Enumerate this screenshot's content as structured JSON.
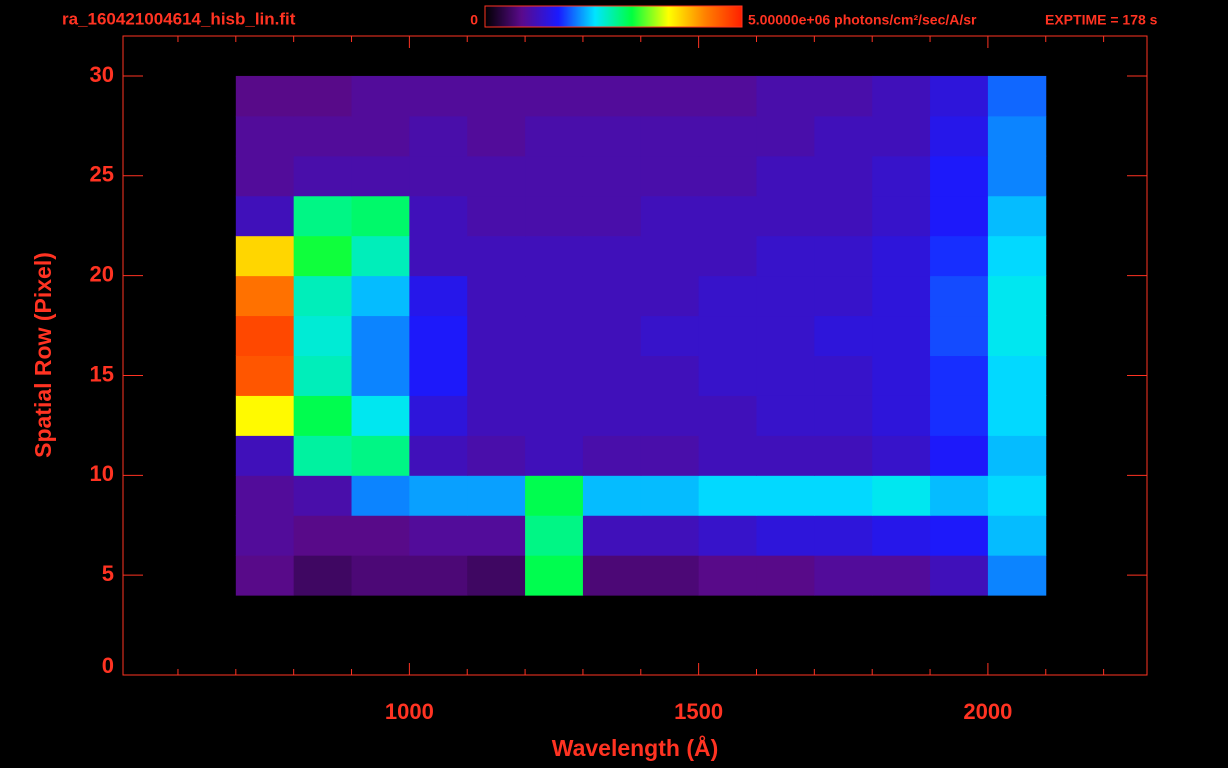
{
  "chart_data": {
    "type": "heatmap",
    "title": "ra_160421004614_hisb_lin.fit",
    "exptime": "EXPTIME = 178 s",
    "x_label": "Wavelength (Å)",
    "y_label": "Spatial Row (Pixel)",
    "xlim": [
      505,
      2275
    ],
    "ylim": [
      0,
      32
    ],
    "xticks": [
      1000,
      1500,
      2000
    ],
    "xminorticks": [
      600,
      700,
      800,
      900,
      1100,
      1200,
      1300,
      1400,
      1600,
      1700,
      1800,
      1900,
      2100,
      2200
    ],
    "yticks": [
      0,
      5,
      10,
      15,
      20,
      25,
      30
    ],
    "xbins": [
      700,
      800,
      900,
      1000,
      1100,
      1200,
      1300,
      1400,
      1500,
      1600,
      1700,
      1800,
      1900,
      2000,
      2100
    ],
    "ybins": [
      4,
      6,
      8,
      10,
      12,
      14,
      16,
      18,
      20,
      22,
      24,
      26,
      28,
      30
    ],
    "zlim": [
      0,
      5000000
    ],
    "colorbar_ticks": [
      0,
      {
        "value": 5000000,
        "label": "5.00000e+06"
      }
    ],
    "colorbar_label": "photons/cm²/sec/A/sr",
    "colormap": [
      "#000000",
      "#5a0a8c",
      "#1a1aff",
      "#00e5ff",
      "#00ff40",
      "#ffff00",
      "#ff8000",
      "#ff2000"
    ],
    "z": [
      [
        700000,
        500000,
        600000,
        600000,
        500000,
        2800000,
        600000,
        600000,
        700000,
        700000,
        800000,
        800000,
        1000000,
        1800000
      ],
      [
        800000,
        700000,
        700000,
        800000,
        800000,
        2600000,
        1000000,
        1000000,
        1100000,
        1200000,
        1200000,
        1300000,
        1400000,
        2000000
      ],
      [
        800000,
        900000,
        1800000,
        1900000,
        1900000,
        2800000,
        2000000,
        2000000,
        2100000,
        2100000,
        2100000,
        2200000,
        2000000,
        2100000
      ],
      [
        1000000,
        2500000,
        2600000,
        1000000,
        900000,
        1000000,
        900000,
        900000,
        1000000,
        1000000,
        1000000,
        1100000,
        1400000,
        2000000
      ],
      [
        3600000,
        2800000,
        2200000,
        1200000,
        1000000,
        1000000,
        1000000,
        1000000,
        1000000,
        1100000,
        1100000,
        1200000,
        1500000,
        2100000
      ],
      [
        4600000,
        2400000,
        1800000,
        1400000,
        1000000,
        1000000,
        1000000,
        1000000,
        1100000,
        1100000,
        1100000,
        1200000,
        1500000,
        2100000
      ],
      [
        4700000,
        2300000,
        1800000,
        1400000,
        1000000,
        1000000,
        1000000,
        1100000,
        1100000,
        1100000,
        1200000,
        1200000,
        1600000,
        2200000
      ],
      [
        4400000,
        2400000,
        2000000,
        1300000,
        1000000,
        1000000,
        1000000,
        1000000,
        1100000,
        1100000,
        1100000,
        1200000,
        1600000,
        2200000
      ],
      [
        3800000,
        2900000,
        2400000,
        1000000,
        1000000,
        1000000,
        1000000,
        1000000,
        1000000,
        1100000,
        1100000,
        1200000,
        1500000,
        2100000
      ],
      [
        1000000,
        2600000,
        2700000,
        1000000,
        900000,
        900000,
        900000,
        1000000,
        1000000,
        1000000,
        1000000,
        1100000,
        1400000,
        2000000
      ],
      [
        800000,
        900000,
        900000,
        900000,
        900000,
        900000,
        900000,
        900000,
        900000,
        1000000,
        1000000,
        1100000,
        1400000,
        1800000
      ],
      [
        800000,
        800000,
        800000,
        900000,
        800000,
        900000,
        900000,
        900000,
        900000,
        900000,
        1000000,
        1000000,
        1300000,
        1800000
      ],
      [
        700000,
        700000,
        800000,
        800000,
        800000,
        800000,
        800000,
        800000,
        800000,
        900000,
        900000,
        1000000,
        1200000,
        1700000
      ]
    ]
  }
}
